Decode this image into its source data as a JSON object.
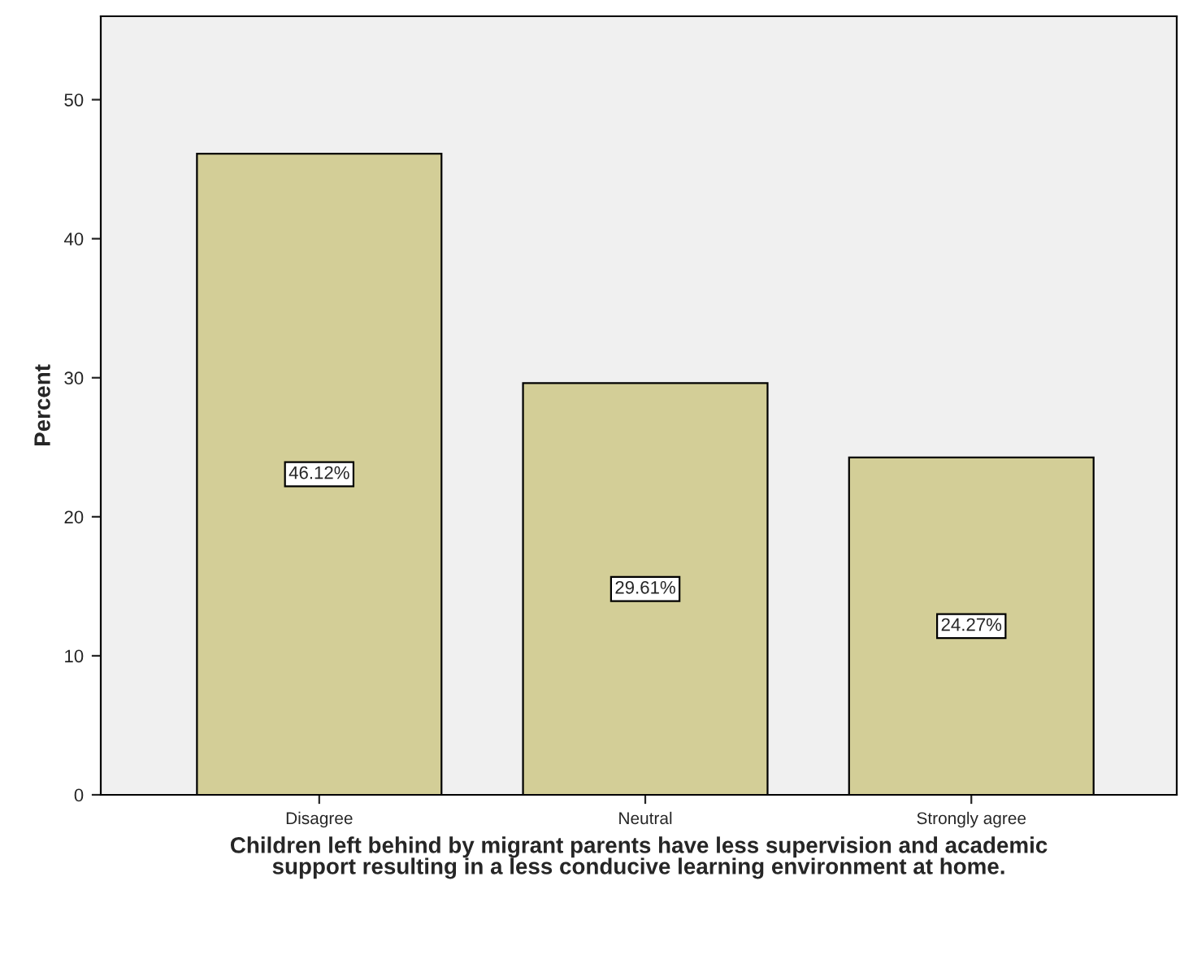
{
  "chart_data": {
    "type": "bar",
    "xlabel": "Children left behind by migrant parents have less supervision and academic\nsupport resulting in a less conducive learning environment at home.",
    "ylabel": "Percent",
    "categories": [
      "Disagree",
      "Neutral",
      "Strongly agree"
    ],
    "values": [
      46.12,
      29.61,
      24.27
    ],
    "value_labels": [
      "46.12%",
      "29.61%",
      "24.27%"
    ],
    "color": "#d3ce97",
    "ylim": [
      0,
      56
    ],
    "yticks": [
      0,
      10,
      20,
      30,
      40,
      50
    ],
    "grid": false
  }
}
